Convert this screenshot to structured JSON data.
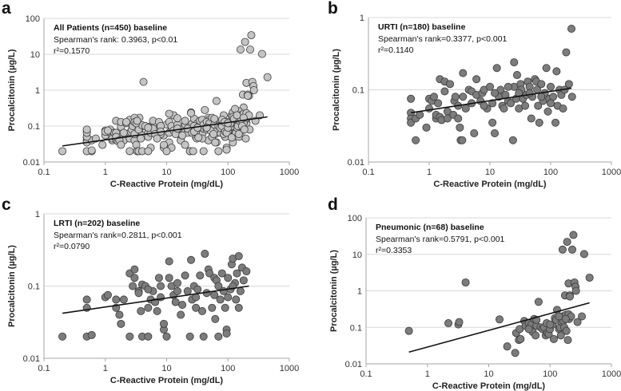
{
  "chart_data": [
    {
      "id": "a",
      "type": "scatter",
      "panel_label": "a",
      "title": "All Patients (n=450) baseline",
      "annotation_lines": [
        "Spearman's rank: 0.3963, p<0.01",
        "r²=0.1570"
      ],
      "xlabel": "C-Reactive Protein (mg/dL)",
      "ylabel": "Procalcitonin (µg/L)",
      "xscale": "log",
      "yscale": "log",
      "xlim": [
        0.1,
        1000
      ],
      "ylim": [
        0.01,
        100
      ],
      "xticks": [
        "0.1",
        "1",
        "10",
        "100",
        "1000"
      ],
      "yticks": [
        "0.01",
        "0.1",
        "1",
        "10",
        "100"
      ],
      "grid": true,
      "marker_color": "#c4c4c4",
      "points_from": [
        "b",
        "c",
        "d"
      ],
      "trendline": [
        [
          0.2,
          0.028
        ],
        [
          440,
          0.18
        ]
      ]
    },
    {
      "id": "b",
      "type": "scatter",
      "panel_label": "b",
      "title": "URTI (n=180) baseline",
      "annotation_lines": [
        "Spearman's rank=0.3377, p<0.001",
        "r²=0.1140"
      ],
      "xlabel": "C-Reactive Protein (mg/dL)",
      "ylabel": "Procalcitonin (µg/L)",
      "xscale": "log",
      "yscale": "log",
      "xlim": [
        0.1,
        1000
      ],
      "ylim": [
        0.01,
        1
      ],
      "xticks": [
        "0.1",
        "1",
        "10",
        "100",
        "1000"
      ],
      "yticks": [
        "0.01",
        "0.1",
        "1"
      ],
      "grid": true,
      "marker_color": "#7c7c7c",
      "points": [
        [
          0.5,
          0.075
        ],
        [
          0.5,
          0.048
        ],
        [
          0.5,
          0.04
        ],
        [
          0.5,
          0.035
        ],
        [
          0.6,
          0.02
        ],
        [
          0.6,
          0.04
        ],
        [
          0.7,
          0.045
        ],
        [
          0.9,
          0.03
        ],
        [
          1,
          0.055
        ],
        [
          1,
          0.075
        ],
        [
          1.1,
          0.07
        ],
        [
          1.2,
          0.08
        ],
        [
          1.3,
          0.04
        ],
        [
          1.3,
          0.045
        ],
        [
          1.4,
          0.065
        ],
        [
          1.5,
          0.042
        ],
        [
          1.5,
          0.14
        ],
        [
          1.6,
          0.038
        ],
        [
          1.8,
          0.095
        ],
        [
          1.8,
          0.13
        ],
        [
          2,
          0.05
        ],
        [
          2,
          0.04
        ],
        [
          2.2,
          0.12
        ],
        [
          2.5,
          0.045
        ],
        [
          2.6,
          0.07
        ],
        [
          2.7,
          0.08
        ],
        [
          3,
          0.04
        ],
        [
          3,
          0.06
        ],
        [
          3.2,
          0.03
        ],
        [
          3.3,
          0.02
        ],
        [
          3.5,
          0.02
        ],
        [
          3.6,
          0.17
        ],
        [
          3.6,
          0.08
        ],
        [
          4,
          0.055
        ],
        [
          4.5,
          0.1
        ],
        [
          5,
          0.095
        ],
        [
          5.5,
          0.025
        ],
        [
          6,
          0.085
        ],
        [
          6,
          0.14
        ],
        [
          7,
          0.07
        ],
        [
          7.5,
          0.09
        ],
        [
          8,
          0.1
        ],
        [
          9,
          0.055
        ],
        [
          10,
          0.11
        ],
        [
          11,
          0.035
        ],
        [
          11,
          0.065
        ],
        [
          12,
          0.025
        ],
        [
          13,
          0.2
        ],
        [
          14,
          0.08
        ],
        [
          15,
          0.1
        ],
        [
          16,
          0.06
        ],
        [
          17,
          0.055
        ],
        [
          18,
          0.085
        ],
        [
          20,
          0.07
        ],
        [
          22,
          0.065
        ],
        [
          24,
          0.02
        ],
        [
          25,
          0.11
        ],
        [
          25,
          0.24
        ],
        [
          27,
          0.075
        ],
        [
          28,
          0.16
        ],
        [
          30,
          0.055
        ],
        [
          32,
          0.12
        ],
        [
          33,
          0.1
        ],
        [
          35,
          0.075
        ],
        [
          38,
          0.06
        ],
        [
          40,
          0.085
        ],
        [
          42,
          0.13
        ],
        [
          45,
          0.11
        ],
        [
          48,
          0.04
        ],
        [
          50,
          0.08
        ],
        [
          55,
          0.14
        ],
        [
          58,
          0.13
        ],
        [
          60,
          0.1
        ],
        [
          62,
          0.06
        ],
        [
          65,
          0.035
        ],
        [
          70,
          0.12
        ],
        [
          75,
          0.07
        ],
        [
          80,
          0.09
        ],
        [
          85,
          0.2
        ],
        [
          90,
          0.05
        ],
        [
          95,
          0.075
        ],
        [
          100,
          0.11
        ],
        [
          110,
          0.08
        ],
        [
          120,
          0.035
        ],
        [
          125,
          0.18
        ],
        [
          130,
          0.06
        ],
        [
          140,
          0.1
        ],
        [
          150,
          0.085
        ],
        [
          170,
          0.1
        ],
        [
          180,
          0.33
        ],
        [
          200,
          0.12
        ],
        [
          220,
          0.7
        ],
        [
          225,
          0.08
        ],
        [
          160,
          0.055
        ],
        [
          100,
          0.065
        ],
        [
          70,
          0.08
        ],
        [
          45,
          0.09
        ],
        [
          30,
          0.09
        ],
        [
          20,
          0.11
        ],
        [
          12,
          0.09
        ],
        [
          8,
          0.06
        ],
        [
          5,
          0.065
        ]
      ],
      "trendline": [
        [
          0.5,
          0.048
        ],
        [
          220,
          0.105
        ]
      ]
    },
    {
      "id": "c",
      "type": "scatter",
      "panel_label": "c",
      "title": "LRTI (n=202) baseline",
      "annotation_lines": [
        "Spearman's rank=0.2811, p<0.001",
        "r²=0.0790"
      ],
      "xlabel": "C-Reactive Protein (mg/dL)",
      "ylabel": "Procalcitonin (µg/L)",
      "xscale": "log",
      "yscale": "log",
      "xlim": [
        0.1,
        1000
      ],
      "ylim": [
        0.01,
        1
      ],
      "xticks": [
        "0.1",
        "1",
        "10",
        "100",
        "1000"
      ],
      "yticks": [
        "0.01",
        "0.1",
        "1"
      ],
      "grid": true,
      "marker_color": "#7c7c7c",
      "points": [
        [
          0.2,
          0.02
        ],
        [
          0.5,
          0.05
        ],
        [
          0.5,
          0.065
        ],
        [
          0.5,
          0.02
        ],
        [
          0.6,
          0.021
        ],
        [
          1,
          0.07
        ],
        [
          1.1,
          0.075
        ],
        [
          1.5,
          0.065
        ],
        [
          1.5,
          0.05
        ],
        [
          1.7,
          0.04
        ],
        [
          1.8,
          0.03
        ],
        [
          2,
          0.065
        ],
        [
          2.5,
          0.02
        ],
        [
          2.5,
          0.15
        ],
        [
          2.8,
          0.1
        ],
        [
          3,
          0.17
        ],
        [
          3,
          0.13
        ],
        [
          3.5,
          0.085
        ],
        [
          3.5,
          0.08
        ],
        [
          3.8,
          0.045
        ],
        [
          4,
          0.02
        ],
        [
          4,
          0.105
        ],
        [
          4.5,
          0.1
        ],
        [
          5,
          0.05
        ],
        [
          5,
          0.02
        ],
        [
          5.5,
          0.065
        ],
        [
          6,
          0.085
        ],
        [
          6.5,
          0.06
        ],
        [
          7,
          0.045
        ],
        [
          7.5,
          0.13
        ],
        [
          8,
          0.1
        ],
        [
          9,
          0.025
        ],
        [
          9,
          0.03
        ],
        [
          10,
          0.02
        ],
        [
          11,
          0.22
        ],
        [
          11,
          0.13
        ],
        [
          12,
          0.1
        ],
        [
          13,
          0.075
        ],
        [
          14,
          0.06
        ],
        [
          15,
          0.11
        ],
        [
          17,
          0.04
        ],
        [
          18,
          0.055
        ],
        [
          20,
          0.14
        ],
        [
          22,
          0.085
        ],
        [
          24,
          0.02
        ],
        [
          25,
          0.23
        ],
        [
          26,
          0.065
        ],
        [
          28,
          0.1
        ],
        [
          30,
          0.05
        ],
        [
          32,
          0.09
        ],
        [
          35,
          0.14
        ],
        [
          38,
          0.045
        ],
        [
          40,
          0.02
        ],
        [
          42,
          0.28
        ],
        [
          45,
          0.08
        ],
        [
          48,
          0.17
        ],
        [
          50,
          0.15
        ],
        [
          55,
          0.05
        ],
        [
          60,
          0.13
        ],
        [
          62,
          0.035
        ],
        [
          65,
          0.12
        ],
        [
          70,
          0.02
        ],
        [
          70,
          0.1
        ],
        [
          75,
          0.065
        ],
        [
          80,
          0.15
        ],
        [
          85,
          0.085
        ],
        [
          90,
          0.05
        ],
        [
          95,
          0.025
        ],
        [
          95,
          0.022
        ],
        [
          100,
          0.13
        ],
        [
          110,
          0.09
        ],
        [
          115,
          0.2
        ],
        [
          120,
          0.24
        ],
        [
          130,
          0.11
        ],
        [
          135,
          0.065
        ],
        [
          140,
          0.15
        ],
        [
          150,
          0.26
        ],
        [
          160,
          0.085
        ],
        [
          170,
          0.18
        ],
        [
          200,
          0.16
        ],
        [
          150,
          0.05
        ],
        [
          100,
          0.07
        ],
        [
          60,
          0.075
        ],
        [
          30,
          0.07
        ],
        [
          15,
          0.085
        ],
        [
          8,
          0.07
        ],
        [
          5,
          0.09
        ],
        [
          120,
          0.1
        ],
        [
          180,
          0.12
        ]
      ],
      "trendline": [
        [
          0.2,
          0.042
        ],
        [
          220,
          0.1
        ]
      ]
    },
    {
      "id": "d",
      "type": "scatter",
      "panel_label": "d",
      "title": "Pneumonic (n=68) baseline",
      "annotation_lines": [
        "Spearman's rank=0.5791, p<0.001",
        "r²=0.3353"
      ],
      "xlabel": "C-Reactive Protein (mg/dL)",
      "ylabel": "Procalcitonin (µg/L)",
      "xscale": "log",
      "yscale": "log",
      "xlim": [
        0.1,
        1000
      ],
      "ylim": [
        0.01,
        100
      ],
      "xticks": [
        "0.1",
        "1",
        "10",
        "100",
        "1000"
      ],
      "yticks": [
        "0.01",
        "0.1",
        "1",
        "10",
        "100"
      ],
      "grid": true,
      "marker_color": "#7c7c7c",
      "points": [
        [
          0.5,
          0.08
        ],
        [
          2.2,
          0.13
        ],
        [
          3.2,
          0.12
        ],
        [
          3.3,
          0.14
        ],
        [
          4.2,
          1.7
        ],
        [
          15,
          0.165
        ],
        [
          20,
          0.03
        ],
        [
          27,
          0.02
        ],
        [
          28,
          0.07
        ],
        [
          31,
          0.045
        ],
        [
          32,
          0.09
        ],
        [
          33,
          0.048
        ],
        [
          38,
          0.15
        ],
        [
          40,
          0.11
        ],
        [
          45,
          0.13
        ],
        [
          48,
          0.1
        ],
        [
          50,
          0.12
        ],
        [
          52,
          0.075
        ],
        [
          55,
          0.17
        ],
        [
          58,
          0.06
        ],
        [
          60,
          0.11
        ],
        [
          65,
          0.5
        ],
        [
          70,
          0.1
        ],
        [
          75,
          0.09
        ],
        [
          80,
          0.1
        ],
        [
          85,
          0.06
        ],
        [
          88,
          0.13
        ],
        [
          90,
          0.07
        ],
        [
          95,
          0.065
        ],
        [
          100,
          0.09
        ],
        [
          110,
          0.12
        ],
        [
          115,
          0.048
        ],
        [
          120,
          0.18
        ],
        [
          125,
          0.16
        ],
        [
          130,
          0.3
        ],
        [
          140,
          0.09
        ],
        [
          145,
          0.1
        ],
        [
          150,
          0.06
        ],
        [
          155,
          0.14
        ],
        [
          160,
          13.5
        ],
        [
          160,
          0.2
        ],
        [
          165,
          0.15
        ],
        [
          170,
          0.1
        ],
        [
          175,
          0.75
        ],
        [
          180,
          0.22
        ],
        [
          185,
          0.08
        ],
        [
          190,
          22
        ],
        [
          195,
          0.045
        ],
        [
          200,
          1.6
        ],
        [
          200,
          0.23
        ],
        [
          205,
          0.17
        ],
        [
          210,
          0.75
        ],
        [
          220,
          0.2
        ],
        [
          230,
          13.5
        ],
        [
          240,
          34
        ],
        [
          250,
          1.7
        ],
        [
          260,
          1.3
        ],
        [
          265,
          1.0
        ],
        [
          280,
          0.14
        ],
        [
          330,
          0.2
        ],
        [
          360,
          10.2
        ],
        [
          440,
          2.3
        ],
        [
          140,
          0.2
        ],
        [
          180,
          0.17
        ],
        [
          100,
          0.12
        ],
        [
          60,
          0.16
        ],
        [
          45,
          0.09
        ],
        [
          210,
          0.7
        ]
      ],
      "trendline": [
        [
          0.5,
          0.021
        ],
        [
          440,
          0.47
        ]
      ]
    }
  ]
}
